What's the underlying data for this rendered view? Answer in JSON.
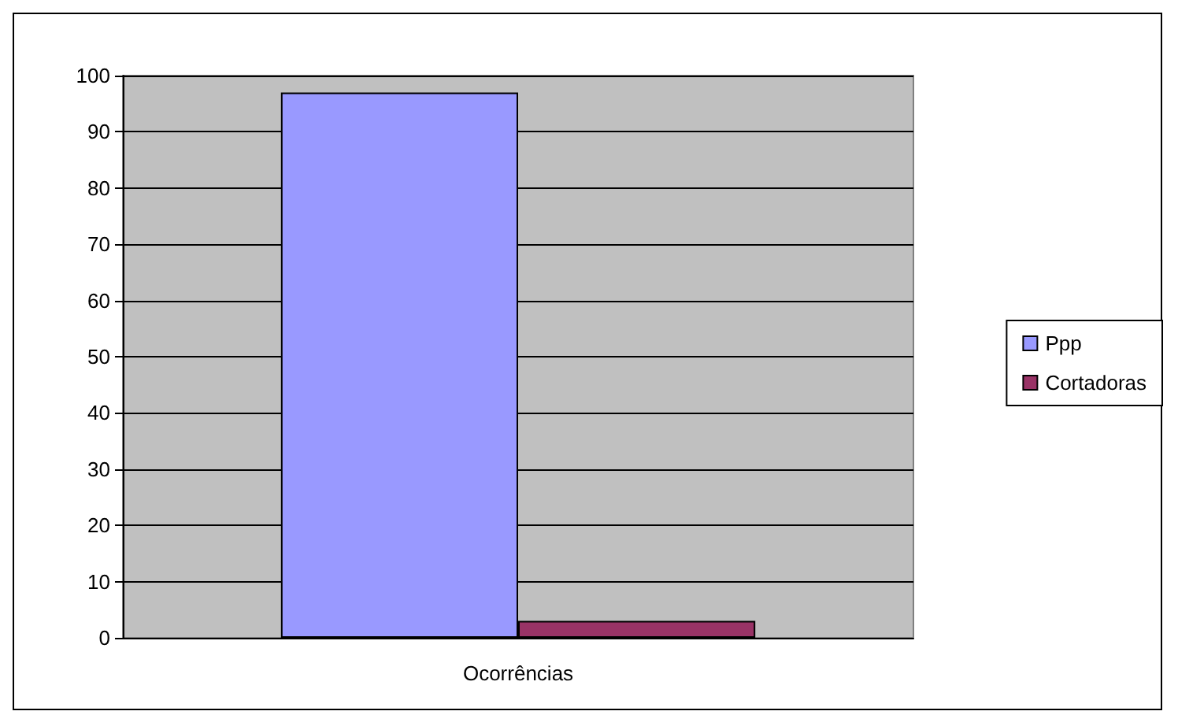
{
  "chart_data": {
    "type": "bar",
    "categories": [
      "Ocorrências"
    ],
    "series": [
      {
        "name": "Ppp",
        "color": "#9999ff",
        "values": [
          97
        ]
      },
      {
        "name": "Cortadoras",
        "color": "#993366",
        "values": [
          3
        ]
      }
    ],
    "ylim": [
      0,
      100
    ],
    "yticks": [
      0,
      10,
      20,
      30,
      40,
      50,
      60,
      70,
      80,
      90,
      100
    ],
    "grid": "y",
    "legend": "right"
  }
}
